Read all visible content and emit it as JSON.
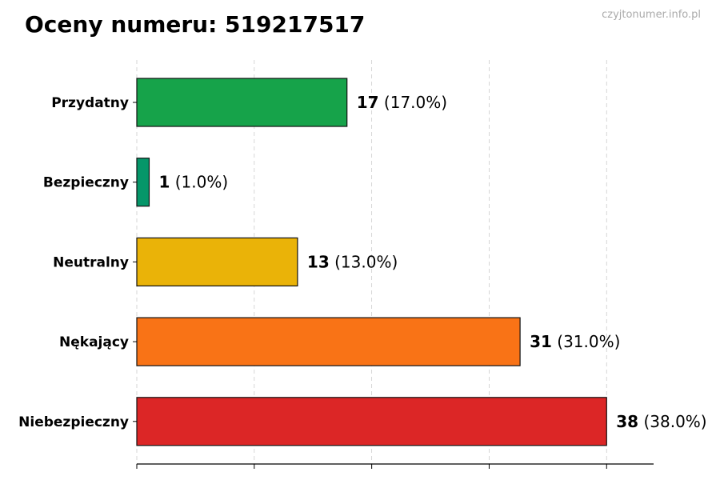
{
  "chart_data": {
    "type": "bar",
    "orientation": "horizontal",
    "title": "Oceny numeru: 519217517",
    "watermark": "czyjtonumer.info.pl",
    "categories": [
      "Przydatny",
      "Bezpieczny",
      "Neutralny",
      "Nękający",
      "Niebezpieczny"
    ],
    "values": [
      17,
      1,
      13,
      31,
      38
    ],
    "value_labels": [
      "17",
      "1",
      "13",
      "31",
      "38"
    ],
    "percent_labels": [
      "(17.0%)",
      "(1.0%)",
      "(13.0%)",
      "(31.0%)",
      "(38.0%)"
    ],
    "colors": [
      "#16a34a",
      "#059669",
      "#eab308",
      "#f97316",
      "#dc2626"
    ],
    "xlim": [
      0,
      41.8
    ],
    "xticks": [
      0,
      9.5,
      19,
      28.5,
      38
    ],
    "xtick_labels_visible": false,
    "grid": "x, dashed",
    "xlabel": "",
    "ylabel": ""
  }
}
